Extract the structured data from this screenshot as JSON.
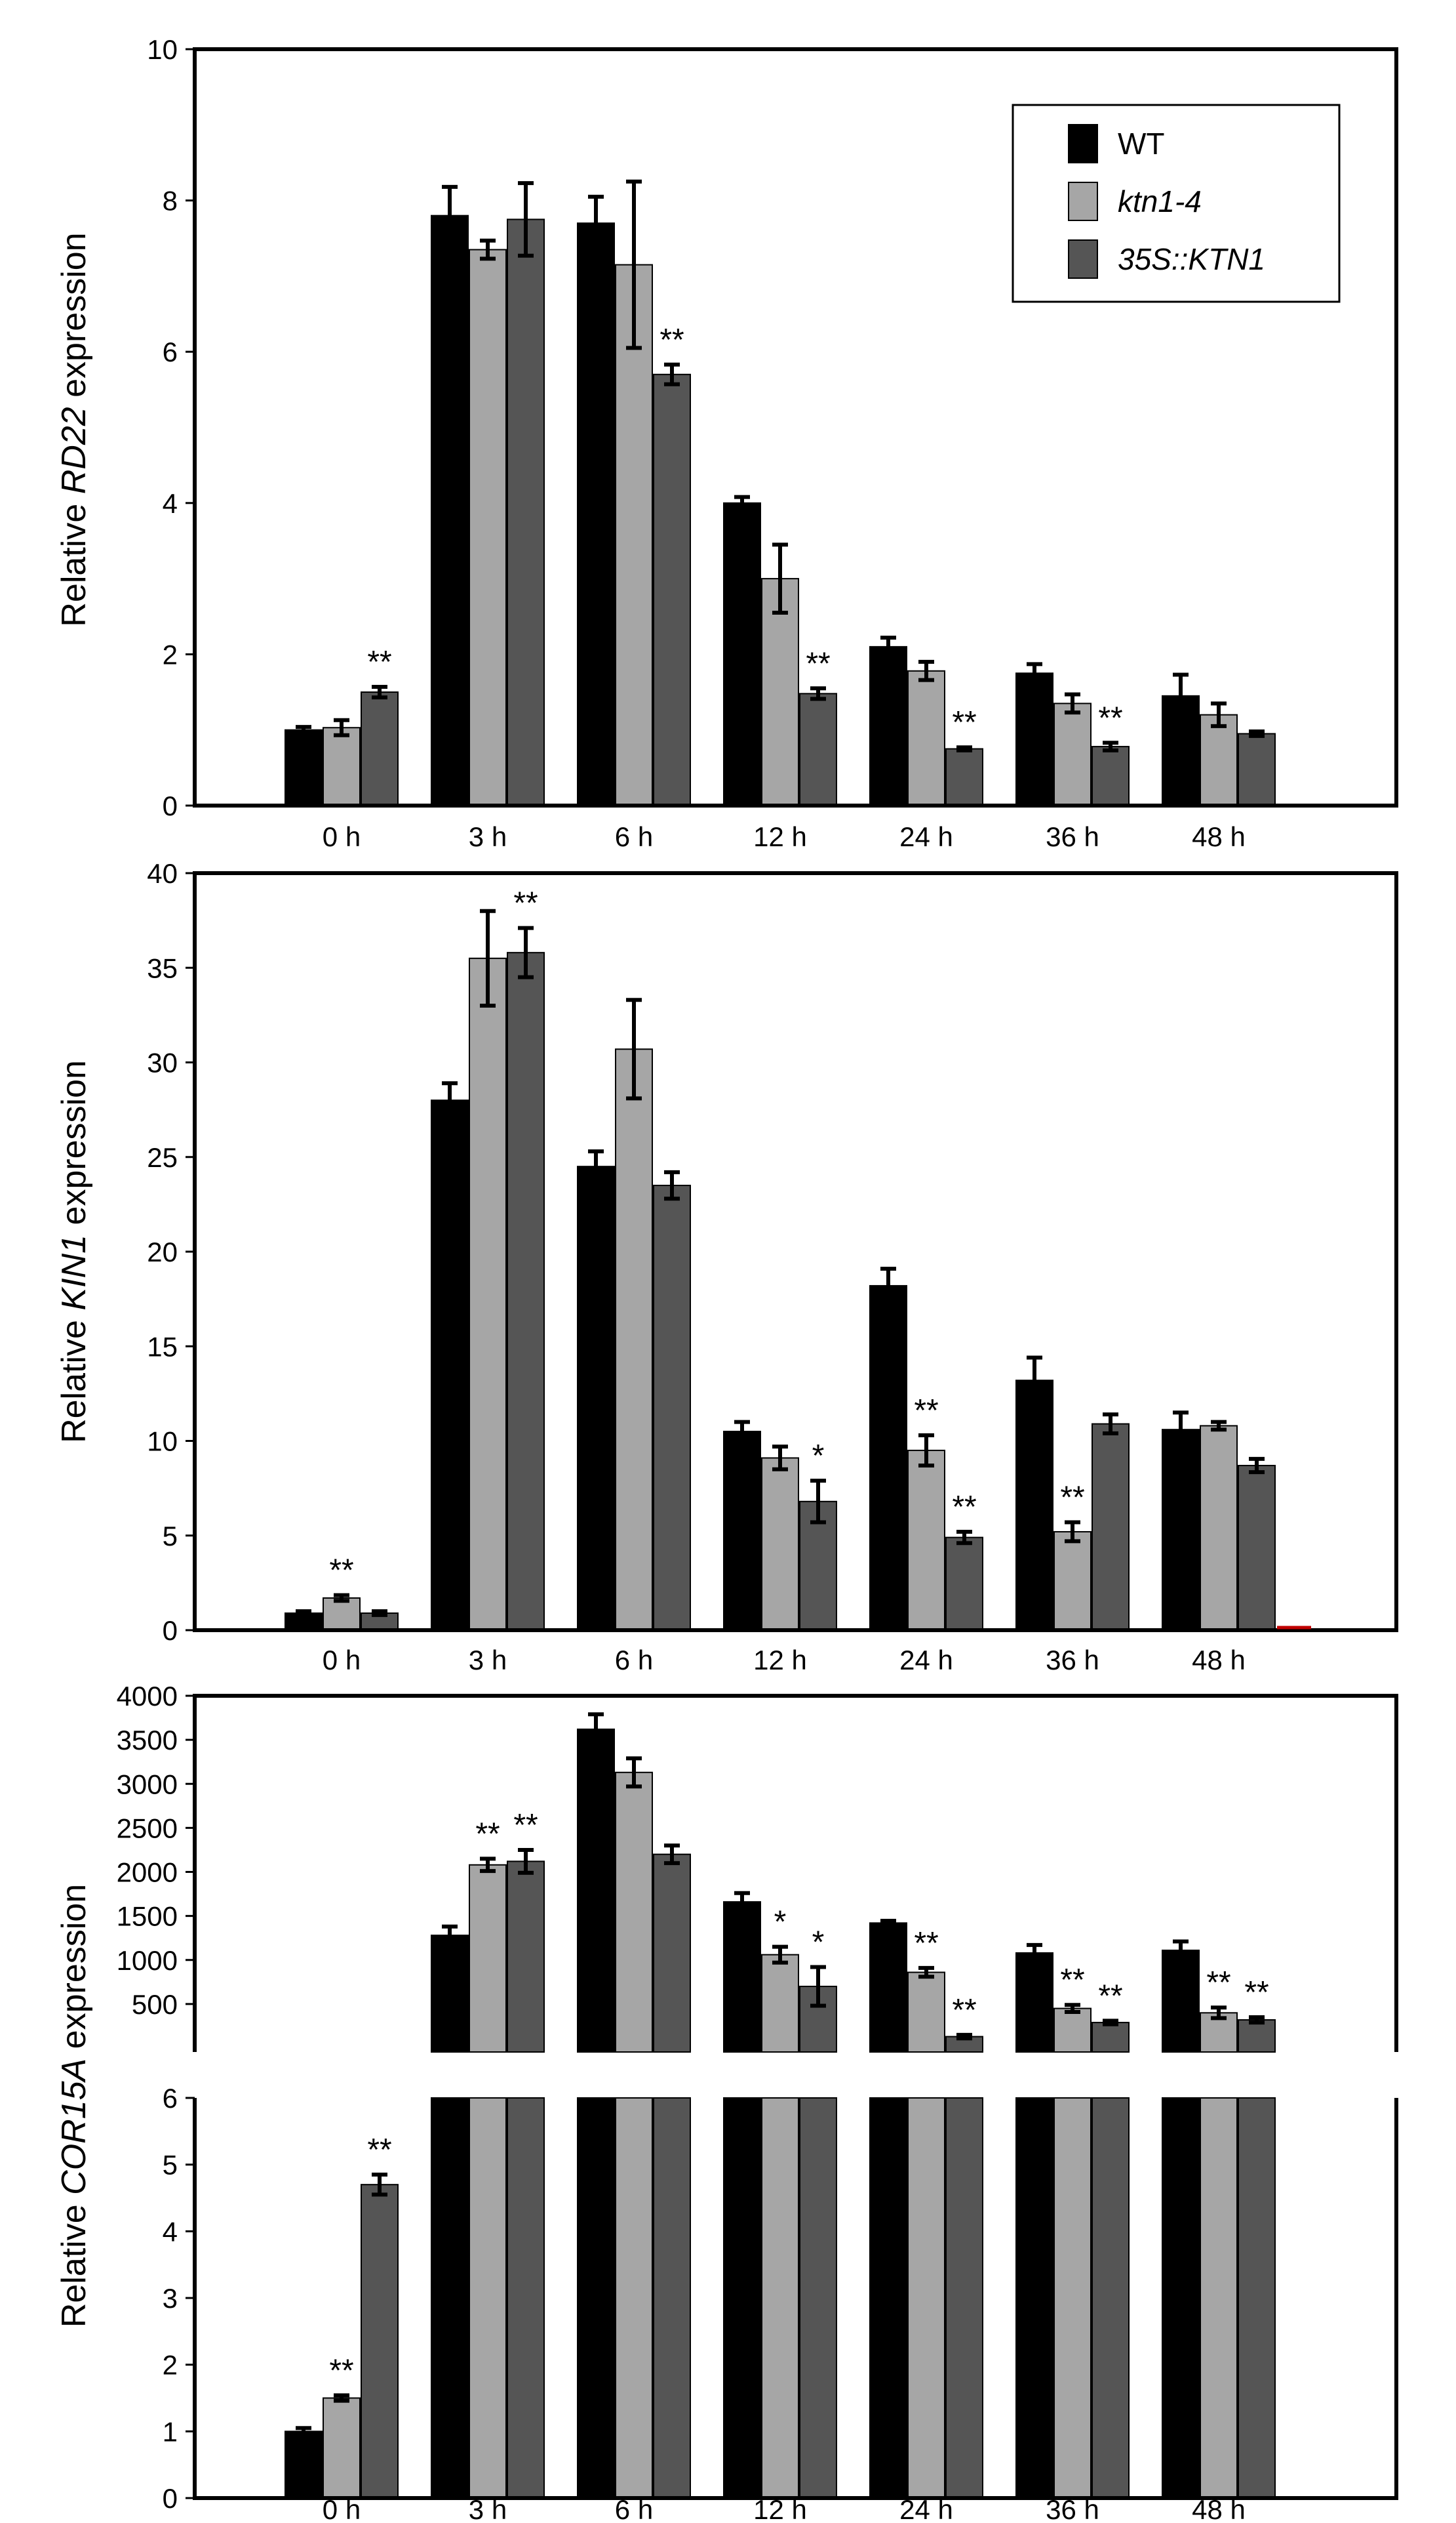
{
  "colors": {
    "wt": "#000000",
    "ktn": "#a6a6a6",
    "oe": "#555555",
    "frame": "#000000"
  },
  "legend": [
    {
      "key": "wt",
      "label": "WT",
      "italic": false
    },
    {
      "key": "ktn",
      "label": "ktn1-4",
      "italic": true
    },
    {
      "key": "oe",
      "label": "35S::KTN1",
      "italic": true
    }
  ],
  "chart_data": [
    {
      "type": "bar",
      "ylabel": {
        "prefix": "Relative ",
        "gene": "RD22",
        "suffix": " expression"
      },
      "categories": [
        "0 h",
        "3 h",
        "6 h",
        "12 h",
        "24 h",
        "36 h",
        "48 h"
      ],
      "ylim": [
        0,
        10
      ],
      "yticks": [
        "0",
        "2",
        "4",
        "6",
        "8",
        "10"
      ],
      "series": [
        {
          "name": "WT",
          "values": [
            1.0,
            7.8,
            7.7,
            4.0,
            2.1,
            1.75,
            1.45
          ],
          "errors": [
            0.04,
            0.38,
            0.35,
            0.08,
            0.12,
            0.12,
            0.28
          ]
        },
        {
          "name": "ktn1-4",
          "values": [
            1.03,
            7.35,
            7.15,
            3.0,
            1.78,
            1.35,
            1.2
          ],
          "errors": [
            0.1,
            0.12,
            1.1,
            0.45,
            0.12,
            0.12,
            0.15
          ]
        },
        {
          "name": "35S::KTN1",
          "values": [
            1.5,
            7.75,
            5.7,
            1.48,
            0.75,
            0.78,
            0.95
          ],
          "errors": [
            0.07,
            0.48,
            0.13,
            0.07,
            0.02,
            0.05,
            0.03
          ]
        }
      ],
      "significance": [
        {
          "category": 0,
          "series": 2,
          "label": "**"
        },
        {
          "category": 2,
          "series": 2,
          "label": "**"
        },
        {
          "category": 3,
          "series": 2,
          "label": "**"
        },
        {
          "category": 4,
          "series": 2,
          "label": "**"
        },
        {
          "category": 5,
          "series": 2,
          "label": "**"
        }
      ]
    },
    {
      "type": "bar",
      "ylabel": {
        "prefix": "Relative ",
        "gene": "KIN1",
        "suffix": " expression"
      },
      "categories": [
        "0 h",
        "3 h",
        "6 h",
        "12 h",
        "24 h",
        "36 h",
        "48 h"
      ],
      "ylim": [
        0,
        40
      ],
      "yticks": [
        "0",
        "5",
        "10",
        "15",
        "20",
        "25",
        "30",
        "35",
        "40"
      ],
      "series": [
        {
          "name": "WT",
          "values": [
            0.9,
            28.0,
            24.5,
            10.5,
            18.2,
            13.2,
            10.6
          ],
          "errors": [
            0.1,
            0.9,
            0.8,
            0.5,
            0.9,
            1.2,
            0.9
          ]
        },
        {
          "name": "ktn1-4",
          "values": [
            1.7,
            35.5,
            30.7,
            9.1,
            9.5,
            5.2,
            10.8
          ],
          "errors": [
            0.15,
            2.5,
            2.6,
            0.6,
            0.8,
            0.5,
            0.2
          ]
        },
        {
          "name": "35S::KTN1",
          "values": [
            0.9,
            35.8,
            23.5,
            6.8,
            4.9,
            10.9,
            8.7
          ],
          "errors": [
            0.1,
            1.3,
            0.7,
            1.1,
            0.3,
            0.5,
            0.35
          ]
        }
      ],
      "significance": [
        {
          "category": 0,
          "series": 1,
          "label": "**"
        },
        {
          "category": 1,
          "series": 2,
          "label": "**"
        },
        {
          "category": 3,
          "series": 2,
          "label": "*"
        },
        {
          "category": 4,
          "series": 1,
          "label": "**"
        },
        {
          "category": 4,
          "series": 2,
          "label": "**"
        },
        {
          "category": 5,
          "series": 1,
          "label": "**"
        }
      ]
    },
    {
      "type": "bar",
      "ylabel": {
        "prefix": "Relative ",
        "gene": "COR15A",
        "suffix": " expression"
      },
      "categories": [
        "0 h",
        "3 h",
        "6 h",
        "12 h",
        "24 h",
        "36 h",
        "48 h"
      ],
      "broken_axis": true,
      "ylim_upper": [
        0,
        4000
      ],
      "yticks_upper": [
        "500",
        "1000",
        "1500",
        "2000",
        "2500",
        "3000",
        "3500",
        "4000"
      ],
      "ylim_lower": [
        0,
        6
      ],
      "yticks_lower": [
        "0",
        "1",
        "2",
        "3",
        "4",
        "5",
        "6"
      ],
      "series": [
        {
          "name": "WT",
          "values": [
            1.0,
            1280,
            3620,
            1660,
            1420,
            1080,
            1110
          ],
          "errors": [
            0.05,
            100,
            170,
            100,
            25,
            90,
            100
          ]
        },
        {
          "name": "ktn1-4",
          "values": [
            1.5,
            2080,
            3130,
            1060,
            860,
            450,
            400
          ],
          "errors": [
            0.04,
            70,
            160,
            90,
            50,
            40,
            60
          ]
        },
        {
          "name": "35S::KTN1",
          "values": [
            4.7,
            2120,
            2200,
            700,
            130,
            290,
            320
          ],
          "errors": [
            0.15,
            130,
            100,
            220,
            20,
            20,
            30
          ]
        }
      ],
      "significance": [
        {
          "category": 0,
          "series": 1,
          "label": "**"
        },
        {
          "category": 0,
          "series": 2,
          "label": "**"
        },
        {
          "category": 1,
          "series": 1,
          "label": "**"
        },
        {
          "category": 1,
          "series": 2,
          "label": "**"
        },
        {
          "category": 3,
          "series": 1,
          "label": "*"
        },
        {
          "category": 3,
          "series": 2,
          "label": "*"
        },
        {
          "category": 4,
          "series": 1,
          "label": "**"
        },
        {
          "category": 4,
          "series": 2,
          "label": "**"
        },
        {
          "category": 5,
          "series": 1,
          "label": "**"
        },
        {
          "category": 5,
          "series": 2,
          "label": "**"
        },
        {
          "category": 6,
          "series": 1,
          "label": "**"
        },
        {
          "category": 6,
          "series": 2,
          "label": "**"
        }
      ]
    }
  ]
}
